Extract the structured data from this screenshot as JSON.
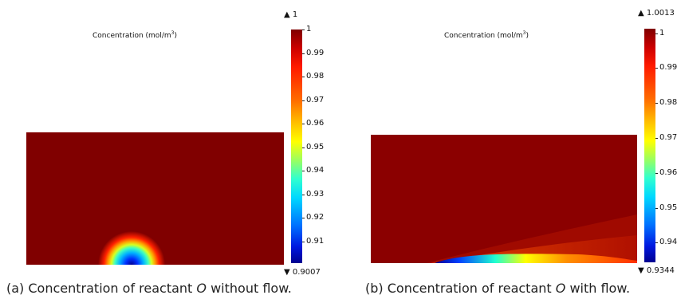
{
  "chart_data": [
    {
      "type": "heatmap",
      "title": "Concentration (mol/m",
      "title_superscript": "3",
      "title_end": ")",
      "colorbar_ticks": [
        "1",
        "0.99",
        "0.98",
        "0.97",
        "0.96",
        "0.95",
        "0.94",
        "0.93",
        "0.92",
        "0.91"
      ],
      "colorbar_max": "▲ 1",
      "colorbar_min": "▼ 0.9007",
      "range": [
        0.9007,
        1
      ],
      "colormap": "rainbow",
      "background_color": "#800000",
      "caption_prefix": "(a) Concentration of reactant ",
      "caption_symbol": "O",
      "caption_suffix": " without flow."
    },
    {
      "type": "heatmap",
      "title": "Concentration (mol/m",
      "title_superscript": "3",
      "title_end": ")",
      "colorbar_ticks": [
        "1",
        "0.99",
        "0.98",
        "0.97",
        "0.96",
        "0.95",
        "0.94"
      ],
      "colorbar_max": "▲ 1.0013",
      "colorbar_min": "▼ 0.9344",
      "range": [
        0.9344,
        1.0013
      ],
      "colormap": "rainbow",
      "background_color": "#8b0000",
      "caption_prefix": "(b) Concentration of reactant ",
      "caption_symbol": "O",
      "caption_suffix": " with flow."
    }
  ]
}
